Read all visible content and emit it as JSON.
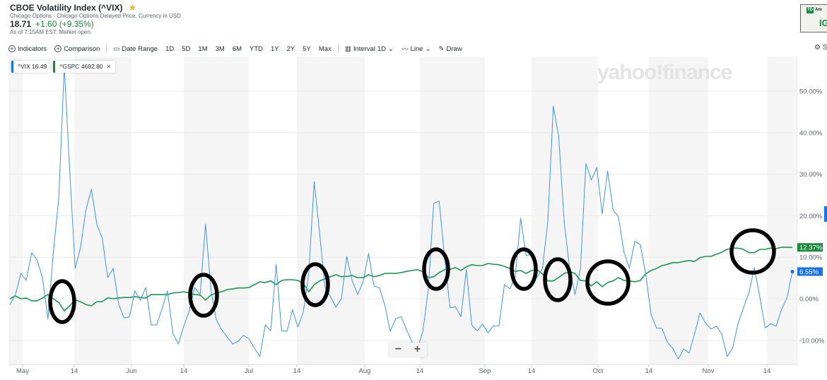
{
  "header": {
    "title": "CBOE Volatility Index (^VIX)",
    "subtitle": "Chicago Options - Chicago Options Delayed Price. Currency in USD",
    "price": "18.71",
    "change": "+1.60 (+9.35%)",
    "as_of": "As of 7:15AM EST. Market open.",
    "star_icon": "star-icon"
  },
  "toolbar": {
    "indicators": "Indicators",
    "comparison": "Comparison",
    "date_range": "Date Range",
    "ranges": [
      "1D",
      "5D",
      "1M",
      "3M",
      "6M",
      "YTD",
      "1Y",
      "2Y",
      "5Y",
      "Max"
    ],
    "interval": "Interval",
    "interval_value": "1D",
    "line": "Line",
    "draw": "Draw",
    "settings": "S"
  },
  "ad": {
    "brand": "Am",
    "text": "IG",
    "logo": "TD"
  },
  "legend": {
    "vix_label": "^VIX",
    "vix_value": "16.49",
    "gspc_label": "^GSPC",
    "gspc_value": "4682.80"
  },
  "watermark": "yahoo!finance",
  "zoom": {
    "minus": "−",
    "plus": "+"
  },
  "colors": {
    "vix": "#3d95e8",
    "gspc": "#1a9a50",
    "vix_tag": "#1a73e8",
    "gspc_tag": "#1a8a3f",
    "band": "#f5f5f5",
    "annotation": "#000000"
  },
  "chart_data": {
    "type": "line",
    "title": "",
    "ylabel": "",
    "ylim": [
      -15.5,
      58
    ],
    "yticks": [
      "50.00%",
      "40.00%",
      "30.00%",
      "20.00%",
      "10.00%",
      "0.00%",
      "-10.00%"
    ],
    "ytick_values": [
      50,
      40,
      30,
      20,
      10,
      0,
      -10
    ],
    "xticks": [
      "May",
      "14",
      "Jun",
      "14",
      "Jul",
      "14",
      "Aug",
      "14",
      "Sep",
      "14",
      "Oct",
      "14",
      "Nov",
      "14"
    ],
    "grid": true,
    "series": [
      {
        "name": "^VIX",
        "end_label": "6.55%",
        "values": [
          -1.4,
          0.9,
          6.1,
          4.4,
          11.1,
          9.4,
          5.1,
          -4.9,
          11.2,
          24.3,
          55.8,
          31.0,
          7.3,
          12.4,
          21.4,
          26.4,
          17.9,
          14.6,
          5.1,
          7.3,
          -1.2,
          -4.6,
          -4.4,
          1.9,
          -0.3,
          2.7,
          -6.3,
          -6.3,
          -2.4,
          1.9,
          -8.3,
          -10.9,
          -6.6,
          -2.9,
          2.7,
          1.0,
          18.0,
          2.2,
          -5.1,
          -7.5,
          -9.2,
          -10.9,
          -10.2,
          -8.8,
          -9.7,
          -11.9,
          -13.9,
          -6.3,
          -7.7,
          8.3,
          -7.7,
          -7.8,
          -2.6,
          -6.8,
          -3.2,
          6.1,
          28.2,
          15.8,
          2.7,
          0.5,
          -2.0,
          0.0,
          10.2,
          4.3,
          1.0,
          4.1,
          10.9,
          3.1,
          2.6,
          -1.5,
          -7.8,
          -4.8,
          -4.3,
          -7.5,
          -10.4,
          -11.9,
          -7.8,
          2.2,
          23.0,
          23.5,
          9.9,
          -2.2,
          -1.9,
          -4.3,
          7.0,
          -6.3,
          -7.7,
          -6.1,
          -8.2,
          -6.5,
          -6.5,
          3.4,
          2.4,
          5.1,
          19.4,
          10.4,
          10.7,
          5.1,
          7.3,
          18.7,
          46.4,
          39.1,
          18.7,
          7.3,
          1.0,
          7.3,
          32.5,
          28.6,
          31.6,
          20.4,
          30.8,
          21.4,
          19.7,
          11.2,
          7.3,
          13.8,
          13.1,
          6.1,
          -3.7,
          -7.1,
          -7.1,
          -10.5,
          -11.9,
          -14.5,
          -12.1,
          -13.1,
          -8.5,
          -3.4,
          -5.8,
          -7.3,
          -6.6,
          -8.5,
          -13.9,
          -11.9,
          -6.0,
          -2.2,
          1.4,
          7.5,
          0.5,
          -7.0,
          -6.0,
          -6.6,
          -2.6,
          0.2,
          6.55
        ]
      },
      {
        "name": "^GSPC",
        "end_label": "12.37%",
        "values": [
          0,
          0.7,
          0,
          0.2,
          -0.5,
          -0.5,
          0.2,
          1.0,
          0,
          -0.9,
          -2.9,
          -1.7,
          -0.3,
          -0.7,
          -1.4,
          -1.7,
          -0.7,
          -0.7,
          0.2,
          0,
          0.2,
          0.3,
          0.3,
          0.5,
          0.3,
          0.2,
          1.0,
          1.0,
          1.0,
          1.0,
          1.4,
          1.5,
          1.7,
          1.4,
          1.0,
          0.9,
          -0.3,
          0.9,
          1.4,
          1.7,
          2.2,
          2.4,
          2.6,
          2.6,
          2.7,
          3.4,
          4.1,
          3.9,
          4.3,
          3.4,
          4.4,
          4.6,
          4.6,
          4.4,
          3.7,
          1.7,
          3.4,
          4.3,
          4.8,
          5.3,
          5.8,
          5.3,
          5.4,
          5.6,
          5.1,
          5.1,
          5.8,
          5.3,
          5.6,
          6.1,
          6.1,
          6.1,
          6.3,
          6.6,
          6.8,
          7.0,
          6.5,
          5.1,
          5.3,
          6.3,
          7.0,
          7.1,
          7.5,
          6.8,
          7.7,
          8.2,
          8.0,
          8.0,
          8.5,
          8.3,
          8.2,
          7.8,
          7.3,
          6.6,
          6.8,
          6.1,
          6.8,
          7.0,
          6.0,
          4.3,
          4.3,
          5.1,
          6.1,
          6.5,
          6.1,
          4.4,
          4.3,
          3.1,
          4.1,
          2.9,
          3.9,
          4.3,
          5.1,
          4.4,
          4.3,
          4.1,
          4.4,
          6.0,
          6.8,
          7.3,
          8.0,
          8.3,
          8.7,
          8.7,
          9.0,
          9.2,
          9.0,
          9.9,
          10.2,
          10.2,
          10.7,
          11.2,
          11.9,
          12.2,
          12.2,
          11.9,
          11.1,
          11.1,
          11.9,
          11.9,
          12.2,
          12.1,
          12.4,
          12.4,
          12.37
        ]
      }
    ]
  }
}
